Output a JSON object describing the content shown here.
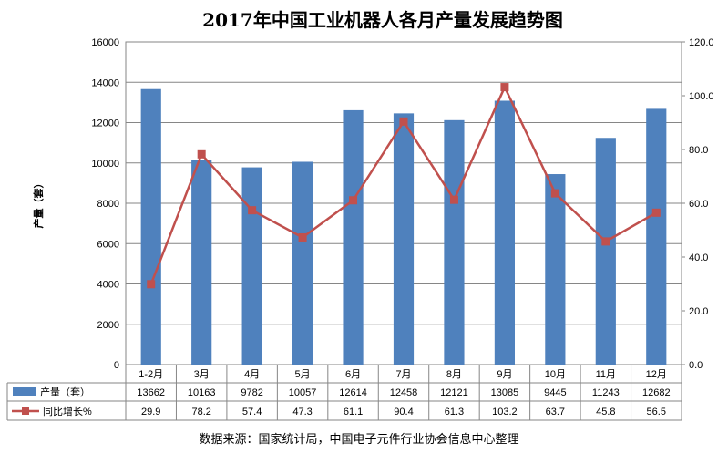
{
  "chart_data": {
    "type": "bar",
    "title": "2017年中国工业机器人各月产量发展趋势图",
    "ylabel": "产量（套）",
    "ylabel_right": "",
    "categories": [
      "1-2月",
      "3月",
      "4月",
      "5月",
      "6月",
      "7月",
      "8月",
      "9月",
      "10月",
      "11月",
      "12月"
    ],
    "ylim": [
      0,
      16000
    ],
    "y_ticks": [
      "0",
      "2000",
      "4000",
      "6000",
      "8000",
      "10000",
      "12000",
      "14000",
      "16000"
    ],
    "ylim_right": [
      0,
      120
    ],
    "y_ticks_right": [
      "0.0",
      "20.0",
      "40.0",
      "60.0",
      "80.0",
      "100.0",
      "120.0"
    ],
    "grid": "horizontal",
    "legend_placement": "data-table",
    "series": [
      {
        "name": "产量（套）",
        "type": "bar",
        "axis": "left",
        "color": "#4f81bd",
        "values": [
          13662,
          10163,
          9782,
          10057,
          12614,
          12458,
          12121,
          13085,
          9445,
          11243,
          12682
        ],
        "labels": [
          "13662",
          "10163",
          "9782",
          "10057",
          "12614",
          "12458",
          "12121",
          "13085",
          "9445",
          "11243",
          "12682"
        ]
      },
      {
        "name": "同比增长%",
        "type": "line",
        "axis": "right",
        "color": "#c0504d",
        "values": [
          29.9,
          78.2,
          57.4,
          47.3,
          61.1,
          90.4,
          61.3,
          103.2,
          63.7,
          45.8,
          56.5
        ],
        "labels": [
          "29.9",
          "78.2",
          "57.4",
          "47.3",
          "61.1",
          "90.4",
          "61.3",
          "103.2",
          "63.7",
          "45.8",
          "56.5"
        ]
      }
    ],
    "source": "数据来源：国家统计局，中国电子元件行业协会信息中心整理"
  }
}
